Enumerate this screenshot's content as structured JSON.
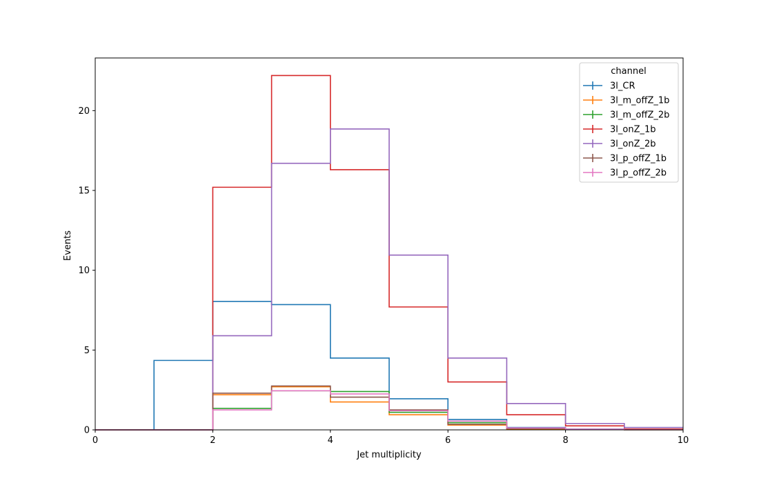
{
  "chart_data": {
    "type": "line",
    "drawstyle": "steps-histogram",
    "xlabel": "Jet multiplicity",
    "ylabel": "Events",
    "xlim": [
      0,
      10
    ],
    "ylim": [
      0,
      23.3
    ],
    "xticks": [
      "0",
      "2",
      "4",
      "6",
      "8",
      "10"
    ],
    "yticks": [
      "0",
      "5",
      "10",
      "15",
      "20"
    ],
    "grid": false,
    "bin_edges": [
      0,
      1,
      2,
      3,
      4,
      5,
      6,
      7,
      8,
      9,
      10
    ],
    "legend": {
      "title": "channel",
      "placement": "top-right"
    },
    "series": [
      {
        "name": "3l_CR",
        "color": "#1f77b4",
        "values": [
          0,
          4.35,
          8.05,
          7.85,
          4.5,
          1.95,
          0.65,
          0.15,
          0.05,
          0.02
        ]
      },
      {
        "name": "3l_m_offZ_1b",
        "color": "#ff7f0e",
        "values": [
          0,
          0,
          2.2,
          2.7,
          1.75,
          0.95,
          0.3,
          0.05,
          0.02,
          0.01
        ]
      },
      {
        "name": "3l_m_offZ_2b",
        "color": "#2ca02c",
        "values": [
          0,
          0,
          1.35,
          2.45,
          2.4,
          1.1,
          0.45,
          0.1,
          0.03,
          0.01
        ]
      },
      {
        "name": "3l_onZ_1b",
        "color": "#d62728",
        "values": [
          0,
          0,
          15.2,
          22.2,
          16.3,
          7.7,
          3.0,
          0.95,
          0.25,
          0.05
        ]
      },
      {
        "name": "3l_onZ_2b",
        "color": "#9467bd",
        "values": [
          0,
          0,
          5.9,
          16.7,
          18.85,
          10.95,
          4.5,
          1.65,
          0.4,
          0.15
        ]
      },
      {
        "name": "3l_p_offZ_1b",
        "color": "#8c564b",
        "values": [
          0,
          0,
          2.3,
          2.75,
          2.05,
          1.25,
          0.35,
          0.08,
          0.02,
          0.01
        ]
      },
      {
        "name": "3l_p_offZ_2b",
        "color": "#e377c2",
        "values": [
          0,
          0,
          1.25,
          2.45,
          2.25,
          1.2,
          0.55,
          0.12,
          0.04,
          0.01
        ]
      }
    ]
  }
}
